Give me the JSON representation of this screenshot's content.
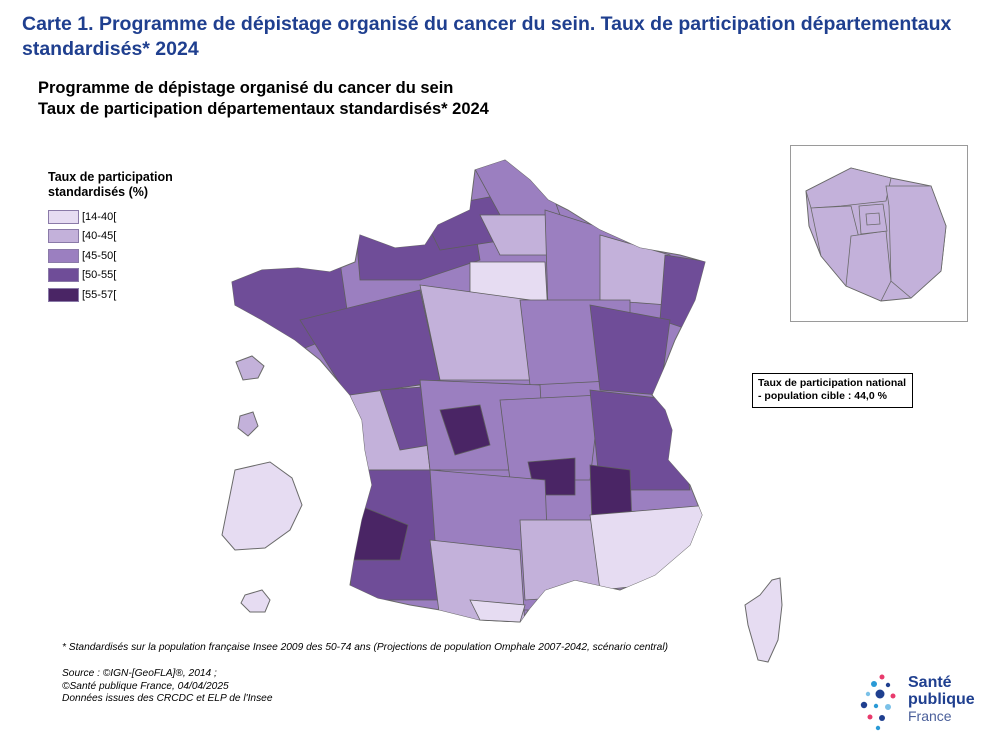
{
  "page_title": "Carte 1. Programme de dépistage organisé du cancer du sein. Taux de participation départementaux standardisés* 2024",
  "map_title": {
    "line1": "Programme de dépistage organisé du cancer du sein",
    "line2": "Taux de participation départementaux standardisés* 2024"
  },
  "legend": {
    "title": "Taux de participation standardisés (%)",
    "classes": [
      {
        "label": "[14-40[",
        "color": "#e6dcf2"
      },
      {
        "label": "[40-45[",
        "color": "#c3b1da"
      },
      {
        "label": "[45-50[",
        "color": "#9b7fc0"
      },
      {
        "label": "[50-55[",
        "color": "#6f4d98"
      },
      {
        "label": "[55-57[",
        "color": "#4a2565"
      }
    ]
  },
  "national": {
    "line1": "Taux de participation national",
    "line2": "- population cible : 44,0 %"
  },
  "footnote": "* Standardisés sur la population française Insee 2009 des 50-74 ans (Projections de population Omphale 2007-2042, scénario central)",
  "source": {
    "line1": "Source : ©IGN-[GeoFLA]®, 2014 ;",
    "line2": "©Santé publique France, 04/04/2025",
    "line3": "Données issues des CRCDC et ELP de l'Insee"
  },
  "logo": {
    "line1": "Santé",
    "line2": "publique",
    "line3": "France"
  },
  "colors": {
    "title_blue": "#1f3f8f",
    "border": "#5a5a5a"
  }
}
